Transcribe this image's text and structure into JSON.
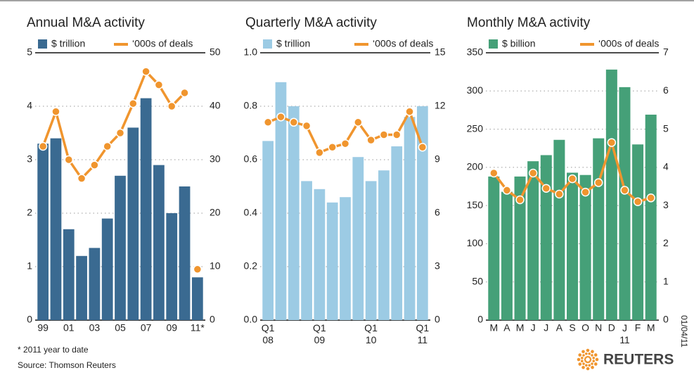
{
  "chart_data": [
    {
      "type": "bar",
      "title": "Annual M&A activity",
      "categories": [
        "99",
        null,
        "01",
        null,
        "03",
        null,
        "05",
        null,
        "07",
        null,
        "09",
        null,
        "11*"
      ],
      "series": [
        {
          "name": "$ trillion",
          "color": "#3a6a91",
          "values": [
            3.3,
            3.4,
            1.7,
            1.2,
            1.35,
            1.9,
            2.7,
            3.6,
            4.15,
            2.9,
            2.0,
            2.5,
            0.8
          ]
        },
        {
          "name": "‘000s of deals",
          "color": "#f0952e",
          "type": "line",
          "axis": "y2",
          "line_gap_before": 12,
          "values": [
            32.5,
            39,
            30,
            26.5,
            29,
            32.5,
            35,
            40.5,
            46.5,
            44,
            40,
            42.5,
            9.5
          ]
        }
      ],
      "ylim": [
        0,
        5
      ],
      "yticks": [
        0,
        1,
        2,
        3,
        4,
        5
      ],
      "y2lim": [
        0,
        50
      ],
      "y2ticks": [
        0,
        10,
        20,
        30,
        40,
        50
      ],
      "grid": true
    },
    {
      "type": "bar",
      "title": "Quarterly M&A activity",
      "categories": [
        "Q1 08",
        null,
        null,
        null,
        "Q1 09",
        null,
        null,
        null,
        "Q1 10",
        null,
        null,
        null,
        "Q1 11"
      ],
      "series": [
        {
          "name": "$ trillion",
          "color": "#9ccbe4",
          "values": [
            0.67,
            0.89,
            0.8,
            0.52,
            0.49,
            0.44,
            0.46,
            0.61,
            0.52,
            0.56,
            0.65,
            0.76,
            0.8
          ]
        },
        {
          "name": "‘000s of deals",
          "color": "#f0952e",
          "type": "line",
          "axis": "y2",
          "values": [
            11.1,
            11.4,
            11.1,
            10.9,
            9.4,
            9.7,
            9.9,
            11.1,
            10.1,
            10.4,
            10.4,
            11.7,
            9.7
          ]
        }
      ],
      "ylim": [
        0,
        1
      ],
      "yticks": [
        {
          "value": 0,
          "label": "0.0"
        },
        0.2,
        0.4,
        0.6,
        0.8,
        {
          "value": 1,
          "label": "1.0"
        }
      ],
      "y2lim": [
        0,
        15
      ],
      "y2ticks": [
        0,
        3,
        6,
        9,
        12,
        15
      ],
      "grid": true
    },
    {
      "type": "bar",
      "title": "Monthly M&A activity",
      "categories": [
        "M",
        "A",
        "M",
        "J",
        "J",
        "A",
        "S",
        "O",
        "N",
        "D",
        "J 11",
        "F",
        "M"
      ],
      "series": [
        {
          "name": "$ billion",
          "color": "#45a078",
          "values": [
            188,
            168,
            188,
            208,
            216,
            236,
            193,
            190,
            238,
            328,
            305,
            230,
            269
          ]
        },
        {
          "name": "‘000s of deals",
          "color": "#f0952e",
          "type": "line",
          "axis": "y2",
          "values": [
            3.85,
            3.4,
            3.15,
            3.85,
            3.45,
            3.3,
            3.7,
            3.35,
            3.6,
            4.65,
            3.4,
            3.1,
            3.2
          ]
        }
      ],
      "ylim": [
        0,
        350
      ],
      "yticks": [
        0,
        50,
        100,
        150,
        200,
        250,
        300,
        350
      ],
      "y2lim": [
        0,
        7
      ],
      "y2ticks": [
        0,
        1,
        2,
        3,
        4,
        5,
        6,
        7
      ],
      "grid": true
    }
  ],
  "footnote": "* 2011 year to date",
  "source": "Source: Thomson Reuters",
  "date": "01/04/11",
  "brand": "REUTERS"
}
